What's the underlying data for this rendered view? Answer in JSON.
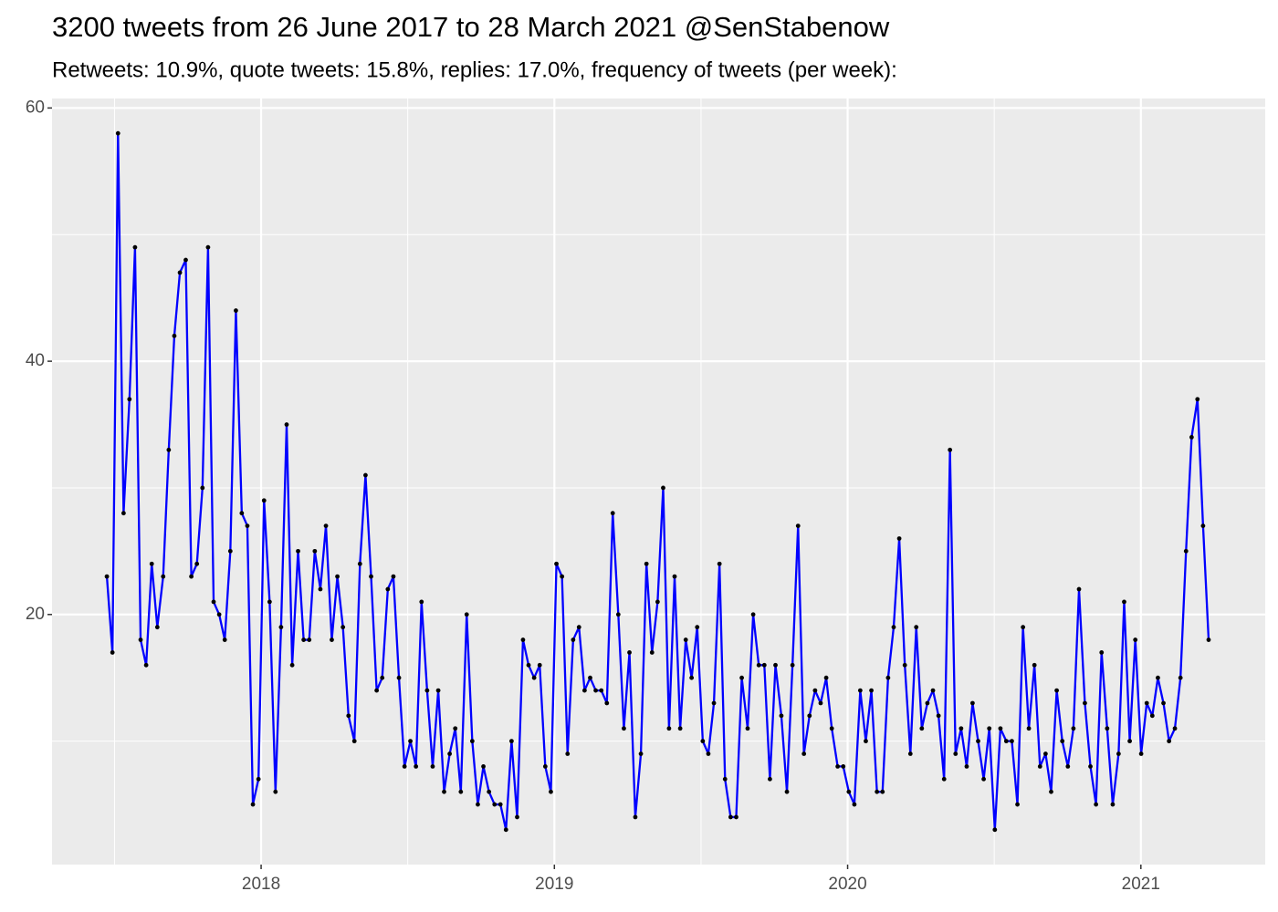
{
  "chart_data": {
    "type": "line",
    "title": "3200 tweets from 26 June 2017 to 28 March 2021 @SenStabenow",
    "subtitle": "Retweets: 10.9%, quote tweets: 15.8%, replies: 17.0%, frequency of tweets (per week):",
    "x": [
      2017.474,
      2017.493,
      2017.512,
      2017.531,
      2017.551,
      2017.57,
      2017.589,
      2017.608,
      2017.627,
      2017.646,
      2017.666,
      2017.685,
      2017.704,
      2017.723,
      2017.743,
      2017.762,
      2017.781,
      2017.8,
      2017.819,
      2017.838,
      2017.857,
      2017.876,
      2017.895,
      2017.914,
      2017.934,
      2017.953,
      2017.972,
      2017.991,
      2018.01,
      2018.029,
      2018.049,
      2018.068,
      2018.087,
      2018.106,
      2018.126,
      2018.145,
      2018.164,
      2018.183,
      2018.202,
      2018.221,
      2018.241,
      2018.26,
      2018.279,
      2018.298,
      2018.318,
      2018.337,
      2018.356,
      2018.375,
      2018.394,
      2018.413,
      2018.432,
      2018.451,
      2018.47,
      2018.489,
      2018.509,
      2018.528,
      2018.547,
      2018.566,
      2018.585,
      2018.604,
      2018.624,
      2018.643,
      2018.662,
      2018.681,
      2018.701,
      2018.72,
      2018.739,
      2018.758,
      2018.777,
      2018.796,
      2018.816,
      2018.835,
      2018.854,
      2018.873,
      2018.893,
      2018.912,
      2018.931,
      2018.95,
      2018.969,
      2018.988,
      2019.007,
      2019.026,
      2019.045,
      2019.064,
      2019.084,
      2019.103,
      2019.122,
      2019.141,
      2019.16,
      2019.179,
      2019.199,
      2019.218,
      2019.237,
      2019.256,
      2019.276,
      2019.295,
      2019.314,
      2019.333,
      2019.352,
      2019.371,
      2019.391,
      2019.41,
      2019.429,
      2019.448,
      2019.468,
      2019.487,
      2019.506,
      2019.525,
      2019.544,
      2019.563,
      2019.582,
      2019.601,
      2019.62,
      2019.639,
      2019.659,
      2019.678,
      2019.697,
      2019.716,
      2019.735,
      2019.754,
      2019.774,
      2019.793,
      2019.812,
      2019.831,
      2019.851,
      2019.87,
      2019.889,
      2019.908,
      2019.927,
      2019.946,
      2019.966,
      2019.985,
      2020.004,
      2020.023,
      2020.043,
      2020.062,
      2020.081,
      2020.1,
      2020.119,
      2020.138,
      2020.157,
      2020.176,
      2020.195,
      2020.214,
      2020.234,
      2020.253,
      2020.272,
      2020.291,
      2020.31,
      2020.329,
      2020.349,
      2020.368,
      2020.387,
      2020.406,
      2020.426,
      2020.445,
      2020.464,
      2020.483,
      2020.502,
      2020.521,
      2020.541,
      2020.56,
      2020.579,
      2020.598,
      2020.618,
      2020.637,
      2020.656,
      2020.675,
      2020.694,
      2020.713,
      2020.732,
      2020.751,
      2020.77,
      2020.789,
      2020.809,
      2020.828,
      2020.847,
      2020.866,
      2020.885,
      2020.904,
      2020.924,
      2020.943,
      2020.962,
      2020.981,
      2021.001,
      2021.02,
      2021.039,
      2021.058,
      2021.077,
      2021.096,
      2021.116,
      2021.135,
      2021.154,
      2021.173,
      2021.193,
      2021.212,
      2021.231
    ],
    "values": [
      23,
      17,
      58,
      28,
      37,
      49,
      18,
      16,
      24,
      19,
      23,
      33,
      42,
      47,
      48,
      23,
      24,
      30,
      49,
      21,
      20,
      18,
      25,
      44,
      28,
      27,
      5,
      7,
      29,
      21,
      6,
      19,
      35,
      16,
      25,
      18,
      18,
      25,
      22,
      27,
      18,
      23,
      19,
      12,
      10,
      24,
      31,
      23,
      14,
      15,
      22,
      23,
      15,
      8,
      10,
      8,
      21,
      14,
      8,
      14,
      6,
      9,
      11,
      6,
      20,
      10,
      5,
      8,
      6,
      5,
      5,
      3,
      10,
      4,
      18,
      16,
      15,
      16,
      8,
      6,
      24,
      23,
      9,
      18,
      19,
      14,
      15,
      14,
      14,
      13,
      28,
      20,
      11,
      17,
      4,
      9,
      24,
      17,
      21,
      30,
      11,
      23,
      11,
      18,
      15,
      19,
      10,
      9,
      13,
      24,
      7,
      4,
      4,
      15,
      11,
      20,
      16,
      16,
      7,
      16,
      12,
      6,
      16,
      27,
      9,
      12,
      14,
      13,
      15,
      11,
      8,
      8,
      6,
      5,
      14,
      10,
      14,
      6,
      6,
      15,
      19,
      26,
      16,
      9,
      19,
      11,
      13,
      14,
      12,
      7,
      33,
      9,
      11,
      8,
      13,
      10,
      7,
      11,
      3,
      11,
      10,
      10,
      5,
      19,
      11,
      16,
      8,
      9,
      6,
      14,
      10,
      8,
      11,
      22,
      13,
      8,
      5,
      17,
      11,
      5,
      9,
      21,
      10,
      18,
      9,
      13,
      12,
      15,
      13,
      10,
      11,
      15,
      25,
      34,
      37,
      27,
      18
    ],
    "line_color": "#0000ff",
    "point_color": "#000000",
    "xlim": [
      2017.287,
      2021.424
    ],
    "xticks": [
      2018,
      2019,
      2020,
      2021
    ],
    "ylim": [
      0.25,
      60.75
    ],
    "yticks": [
      20,
      40,
      60
    ],
    "grid": true
  }
}
